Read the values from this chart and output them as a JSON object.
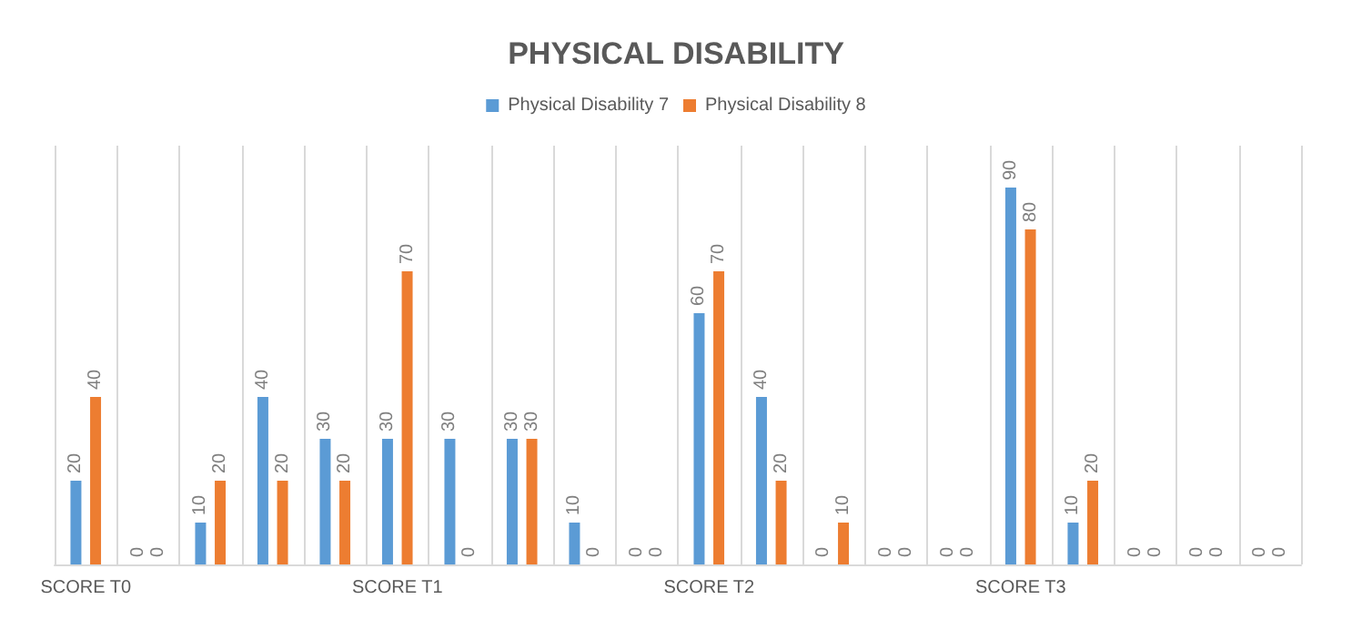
{
  "chart_data": {
    "type": "bar",
    "title": "PHYSICAL DISABILITY",
    "categories": [
      "SCORE T0",
      null,
      null,
      null,
      null,
      "SCORE T1",
      null,
      null,
      null,
      null,
      "SCORE T2",
      null,
      null,
      null,
      null,
      "SCORE T3",
      null,
      null,
      null,
      null
    ],
    "series": [
      {
        "name": "Physical Disability 7",
        "color": "#5b9bd5",
        "values": [
          20,
          0,
          10,
          40,
          30,
          30,
          30,
          30,
          10,
          0,
          60,
          40,
          0,
          0,
          0,
          90,
          10,
          0,
          0,
          0
        ]
      },
      {
        "name": "Physical Disability 8",
        "color": "#ed7d31",
        "values": [
          40,
          0,
          20,
          20,
          20,
          70,
          0,
          30,
          0,
          0,
          70,
          20,
          10,
          0,
          0,
          80,
          20,
          0,
          0,
          0
        ]
      }
    ],
    "ylim": [
      0,
      100
    ],
    "grid": "x",
    "legend": "top",
    "data_labels": true,
    "tick_labels": "x"
  }
}
